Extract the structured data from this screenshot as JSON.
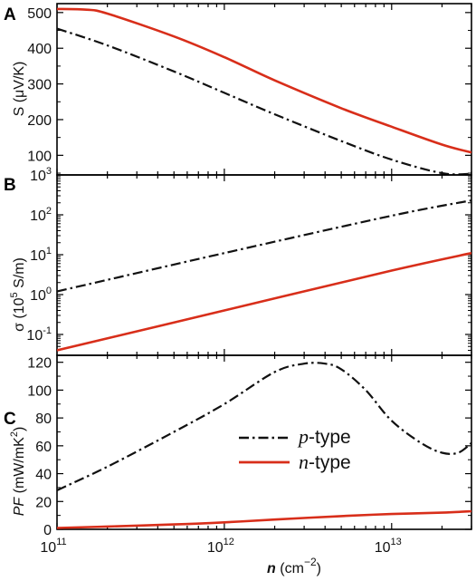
{
  "colors": {
    "p_type": "#111111",
    "n_type": "#d82e1a",
    "axis": "#000000"
  },
  "chart_data": [
    {
      "panel": "A",
      "type": "line",
      "ylabel": "S (μV/K)",
      "xscale": "log",
      "xlim": [
        100000000000.0,
        30000000000000.0
      ],
      "ylim": [
        45,
        525
      ],
      "yticks": [
        100,
        200,
        300,
        400,
        500
      ],
      "series": [
        {
          "name": "p-type",
          "style": "dash-dot",
          "x": [
            100000000000.0,
            200000000000.0,
            500000000000.0,
            1000000000000.0,
            2000000000000.0,
            5000000000000.0,
            10000000000000.0,
            20000000000000.0,
            30000000000000.0
          ],
          "y": [
            455,
            408,
            335,
            275,
            215,
            140,
            88,
            50,
            48
          ]
        },
        {
          "name": "n-type",
          "style": "solid",
          "x": [
            100000000000.0,
            150000000000.0,
            200000000000.0,
            500000000000.0,
            1000000000000.0,
            2000000000000.0,
            5000000000000.0,
            10000000000000.0,
            20000000000000.0,
            30000000000000.0
          ],
          "y": [
            510,
            508,
            497,
            433,
            375,
            310,
            232,
            180,
            130,
            108
          ]
        }
      ]
    },
    {
      "panel": "B",
      "type": "line",
      "ylabel": "σ (10⁵ S/m)",
      "xscale": "log",
      "yscale": "log",
      "xlim": [
        100000000000.0,
        30000000000000.0
      ],
      "ylim": [
        0.03,
        1000
      ],
      "yticks": [
        0.1,
        1,
        10,
        100,
        1000
      ],
      "series": [
        {
          "name": "p-type",
          "style": "dash-dot",
          "x": [
            100000000000.0,
            1000000000000.0,
            10000000000000.0,
            30000000000000.0
          ],
          "y": [
            1.2,
            11,
            95,
            230
          ]
        },
        {
          "name": "n-type",
          "style": "solid",
          "x": [
            100000000000.0,
            1000000000000.0,
            10000000000000.0,
            30000000000000.0
          ],
          "y": [
            0.04,
            0.4,
            4,
            11
          ]
        }
      ]
    },
    {
      "panel": "C",
      "type": "line",
      "ylabel": "PF (mW/mK²)",
      "xlabel": "n (cm⁻²)",
      "xscale": "log",
      "xlim": [
        100000000000.0,
        30000000000000.0
      ],
      "ylim": [
        0,
        125
      ],
      "yticks": [
        0,
        20,
        40,
        60,
        80,
        100,
        120
      ],
      "xticks": [
        100000000000.0,
        1000000000000.0,
        10000000000000.0
      ],
      "legend": {
        "placement": "center-right",
        "entries": [
          {
            "series": "p-type",
            "label_main": "p",
            "label_suffix": "-type"
          },
          {
            "series": "n-type",
            "label_main": "n",
            "label_suffix": "-type"
          }
        ]
      },
      "series": [
        {
          "name": "p-type",
          "style": "dash-dot",
          "x": [
            100000000000.0,
            200000000000.0,
            500000000000.0,
            1000000000000.0,
            2000000000000.0,
            3000000000000.0,
            4000000000000.0,
            5000000000000.0,
            7000000000000.0,
            10000000000000.0,
            15000000000000.0,
            20000000000000.0,
            25000000000000.0,
            30000000000000.0
          ],
          "y": [
            28,
            45,
            70,
            90,
            113,
            119,
            119,
            115,
            100,
            78,
            62,
            55,
            55,
            62
          ]
        },
        {
          "name": "n-type",
          "style": "solid",
          "x": [
            100000000000.0,
            200000000000.0,
            500000000000.0,
            1000000000000.0,
            2000000000000.0,
            5000000000000.0,
            10000000000000.0,
            20000000000000.0,
            30000000000000.0
          ],
          "y": [
            1,
            2,
            3.5,
            5,
            7,
            9.5,
            11,
            12,
            13
          ]
        }
      ]
    }
  ],
  "ticks": {
    "panelA_y": [
      "100",
      "200",
      "300",
      "400",
      "500"
    ],
    "panelC_y": [
      "0",
      "20",
      "40",
      "60",
      "80",
      "100",
      "120"
    ]
  },
  "labels": {
    "panelA_letter": "A",
    "panelB_letter": "B",
    "panelC_letter": "C",
    "panelA_ylabel": "S (μV/K)",
    "panelC_ylabel_main": "PF",
    "panelC_ylabel_unit": " (mW/mK",
    "panelC_ylabel_sup": "2",
    "panelC_ylabel_close": ")",
    "panelB_ylabel_main": "σ  (10",
    "panelB_ylabel_sup": "5",
    "panelB_ylabel_unit": " S/m)",
    "xlabel_main": "n",
    "xlabel_unit": " (cm",
    "xlabel_sup": "−2",
    "xlabel_close": ")",
    "xtick_base": "10",
    "xtick_exp": [
      "11",
      "12",
      "13"
    ],
    "ytickB_base": "10",
    "ytickB_exp": [
      "-1",
      "0",
      "1",
      "2",
      "3"
    ],
    "legend_p_main": "p",
    "legend_p_suffix": "-type",
    "legend_n_main": "n",
    "legend_n_suffix": "-type"
  }
}
